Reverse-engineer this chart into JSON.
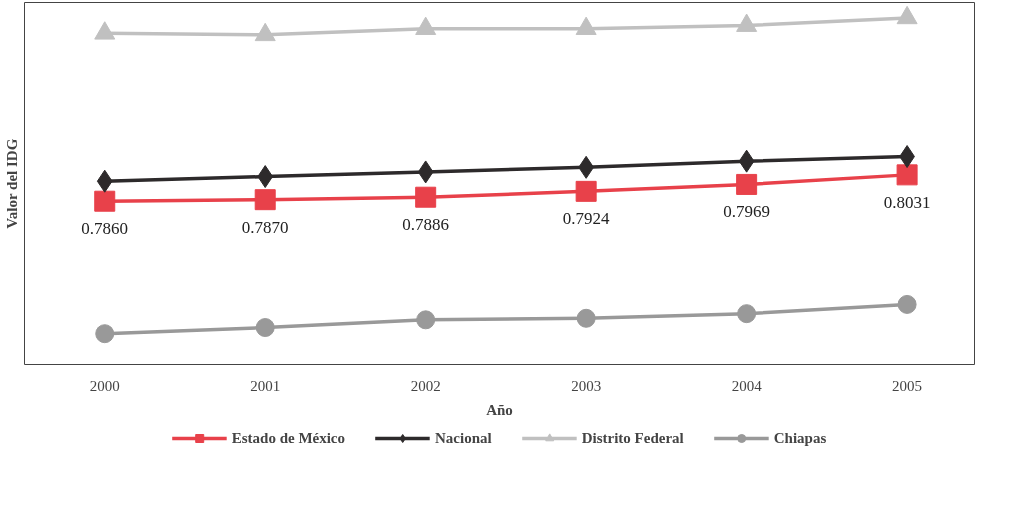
{
  "chart_data": {
    "type": "line",
    "xlabel": "Año",
    "ylabel": "Valor del IDG",
    "x": [
      2000,
      2001,
      2002,
      2003,
      2004,
      2005
    ],
    "xlim": [
      1999.5,
      2005.42
    ],
    "xticks": [
      2000,
      2001,
      2002,
      2003,
      2004,
      2005
    ],
    "ylim": [
      0.68,
      0.915
    ],
    "tick_labels": "x",
    "grid": false,
    "legend": "bottom",
    "series": [
      {
        "name": "Estado de México",
        "color": "#e8414a",
        "marker": "square",
        "values": [
          0.786,
          0.787,
          0.7886,
          0.7924,
          0.7969,
          0.8031
        ],
        "value_labels": [
          "0.7860",
          "0.7870",
          "0.7886",
          "0.7924",
          "0.7969",
          "0.8031"
        ]
      },
      {
        "name": "Nacional",
        "color": "#2d2a2b",
        "marker": "diamond",
        "values": [
          0.799,
          0.802,
          0.805,
          0.808,
          0.812,
          0.815
        ]
      },
      {
        "name": "Distrito Federal",
        "color": "#c0c0c0",
        "marker": "triangle",
        "values": [
          0.895,
          0.894,
          0.898,
          0.898,
          0.9,
          0.905
        ]
      },
      {
        "name": "Chiapas",
        "color": "#999999",
        "marker": "circle",
        "values": [
          0.7,
          0.704,
          0.709,
          0.71,
          0.713,
          0.719
        ]
      }
    ]
  }
}
